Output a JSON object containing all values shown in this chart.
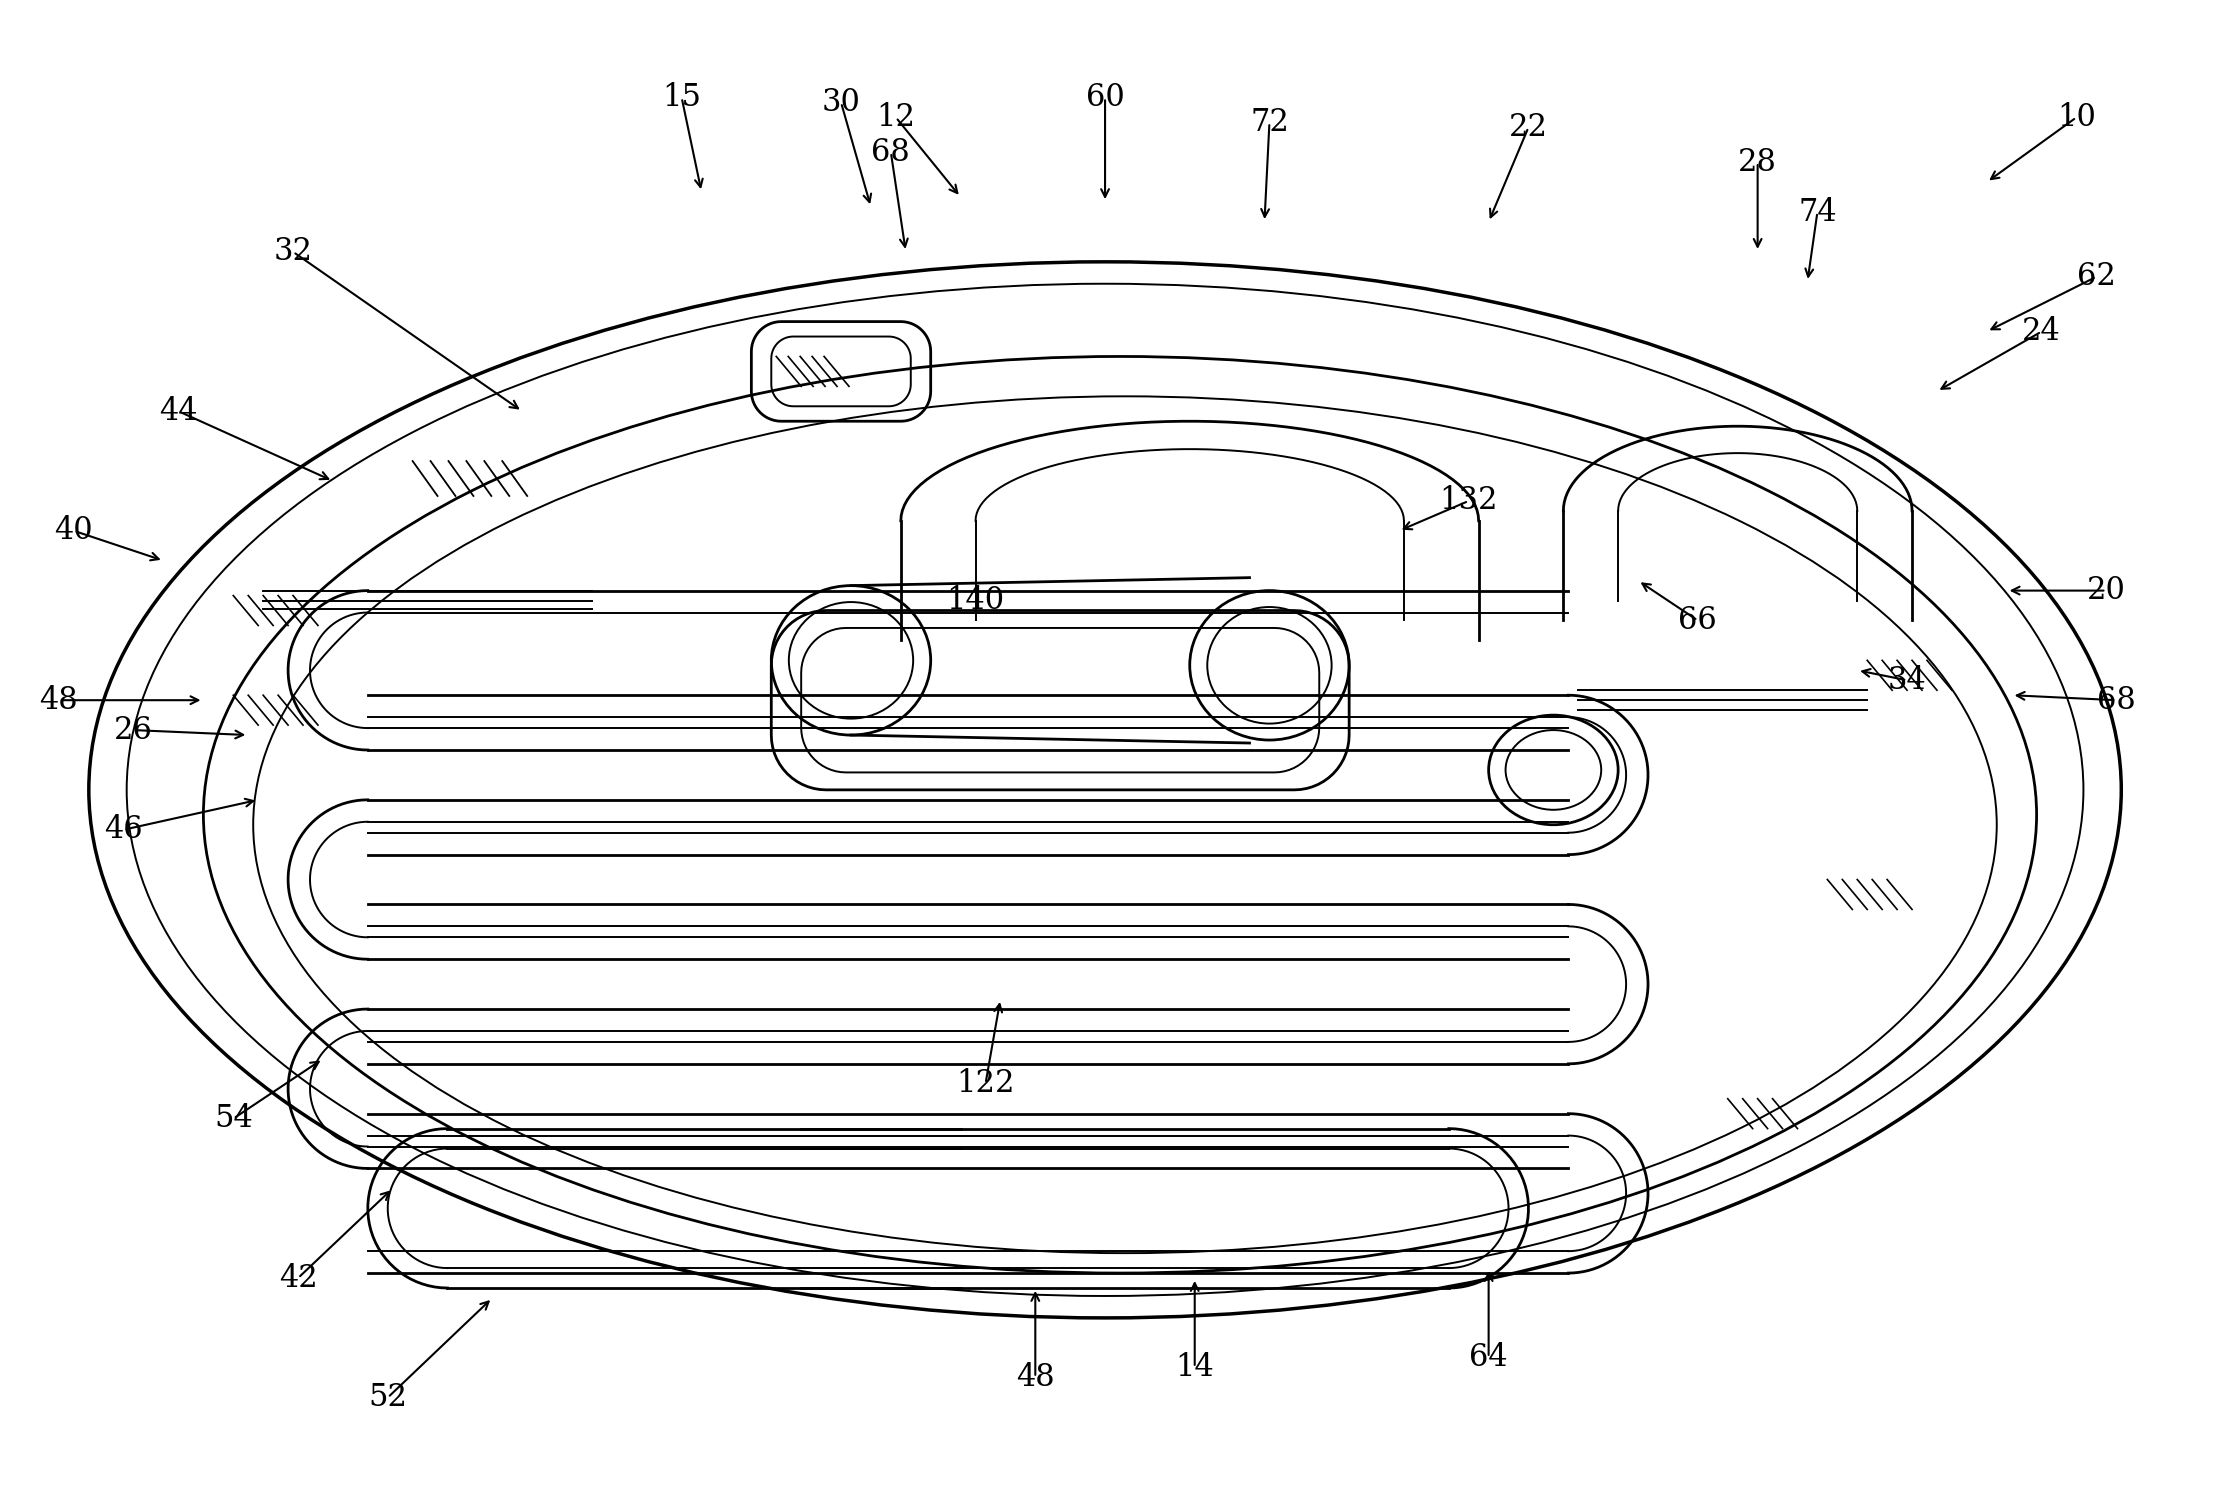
{
  "bg_color": "#ffffff",
  "line_color": "#000000",
  "fig_width": 22.38,
  "fig_height": 15.04,
  "dpi": 100,
  "lw_outer": 2.5,
  "lw_main": 2.0,
  "lw_thin": 1.4,
  "lw_detail": 1.0,
  "label_fs": 22,
  "label_data": [
    [
      "10",
      2080,
      115,
      1990,
      180
    ],
    [
      "12",
      895,
      115,
      960,
      195
    ],
    [
      "14",
      1195,
      1370,
      1195,
      1280
    ],
    [
      "15",
      680,
      95,
      700,
      190
    ],
    [
      "20",
      2110,
      590,
      2010,
      590
    ],
    [
      "22",
      1530,
      125,
      1490,
      220
    ],
    [
      "24",
      2045,
      330,
      1940,
      390
    ],
    [
      "26",
      130,
      730,
      245,
      735
    ],
    [
      "28",
      1760,
      160,
      1760,
      250
    ],
    [
      "30",
      840,
      100,
      870,
      205
    ],
    [
      "32",
      290,
      250,
      520,
      410
    ],
    [
      "34",
      1910,
      680,
      1860,
      670
    ],
    [
      "40",
      70,
      530,
      160,
      560
    ],
    [
      "42",
      295,
      1280,
      390,
      1190
    ],
    [
      "44",
      175,
      410,
      330,
      480
    ],
    [
      "46",
      120,
      830,
      255,
      800
    ],
    [
      "48",
      55,
      700,
      200,
      700
    ],
    [
      "48",
      1035,
      1380,
      1035,
      1290
    ],
    [
      "52",
      385,
      1400,
      490,
      1300
    ],
    [
      "54",
      230,
      1120,
      320,
      1060
    ],
    [
      "60",
      1105,
      95,
      1105,
      200
    ],
    [
      "62",
      2100,
      275,
      1990,
      330
    ],
    [
      "64",
      1490,
      1360,
      1490,
      1270
    ],
    [
      "66",
      1700,
      620,
      1640,
      580
    ],
    [
      "68",
      890,
      150,
      905,
      250
    ],
    [
      "68",
      2120,
      700,
      2015,
      695
    ],
    [
      "72",
      1270,
      120,
      1265,
      220
    ],
    [
      "74",
      1820,
      210,
      1810,
      280
    ],
    [
      "122",
      985,
      1085,
      1000,
      1000
    ],
    [
      "132",
      1470,
      500,
      1400,
      530
    ],
    [
      "140",
      975,
      600,
      null,
      null
    ]
  ]
}
